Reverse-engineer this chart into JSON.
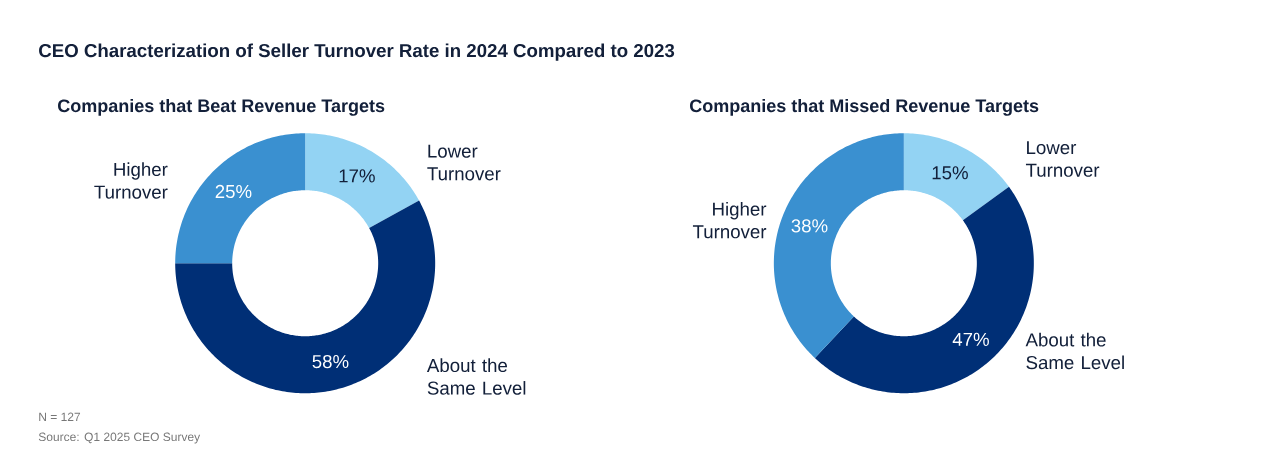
{
  "chart_data": [
    {
      "type": "donut",
      "title": "CEO Characterization of Seller Turnover Rate in 2024 Compared to 2023",
      "subtitle": "Companies that Beat Revenue Targets",
      "categories": [
        "Lower Turnover",
        "About the Same Level",
        "Higher Turnover"
      ],
      "values": [
        17,
        58,
        25
      ],
      "colors": [
        "#93d3f3",
        "#002f76",
        "#3a90d0"
      ],
      "value_labels": [
        "17%",
        "58%",
        "25%"
      ],
      "annotations": [
        "N = 127",
        "Source: Q1 2025 CEO Survey"
      ]
    },
    {
      "type": "donut",
      "subtitle": "Companies that Missed Revenue Targets",
      "categories": [
        "Lower Turnover",
        "About the Same Level",
        "Higher Turnover"
      ],
      "values": [
        15,
        47,
        38
      ],
      "colors": [
        "#93d3f3",
        "#002f76",
        "#3a90d0"
      ],
      "value_labels": [
        "15%",
        "47%",
        "38%"
      ]
    }
  ]
}
